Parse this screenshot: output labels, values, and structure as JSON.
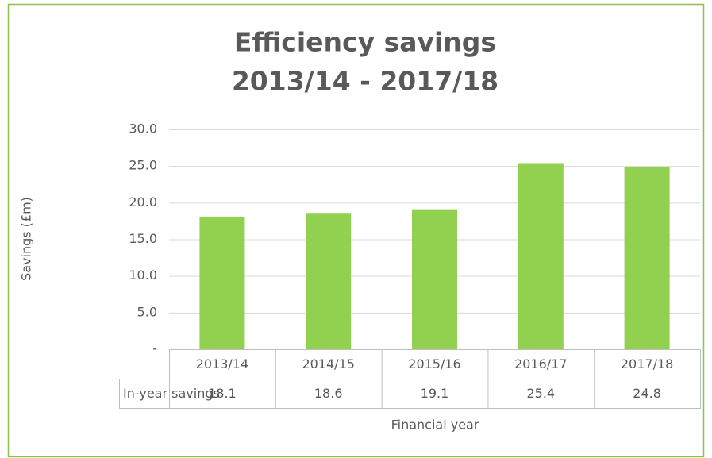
{
  "chart_data": {
    "type": "bar",
    "title": [
      "Efficiency savings",
      "2013/14 - 2017/18"
    ],
    "y_label": "Savings (£m)",
    "x_label": "Financial year",
    "categories": [
      "2013/14",
      "2014/15",
      "2015/16",
      "2016/17",
      "2017/18"
    ],
    "series": [
      {
        "name": "In-year savings",
        "color": "#92d050",
        "values": [
          18.1,
          18.6,
          19.1,
          25.4,
          24.8
        ]
      }
    ],
    "ylim": [
      0,
      30
    ],
    "yticks": [
      {
        "value": 0,
        "label": "-"
      },
      {
        "value": 5,
        "label": "5.0"
      },
      {
        "value": 10,
        "label": "10.0"
      },
      {
        "value": 15,
        "label": "15.0"
      },
      {
        "value": 20,
        "label": "20.0"
      },
      {
        "value": 25,
        "label": "25.0"
      },
      {
        "value": 30,
        "label": "30.0"
      }
    ],
    "grid": true
  }
}
